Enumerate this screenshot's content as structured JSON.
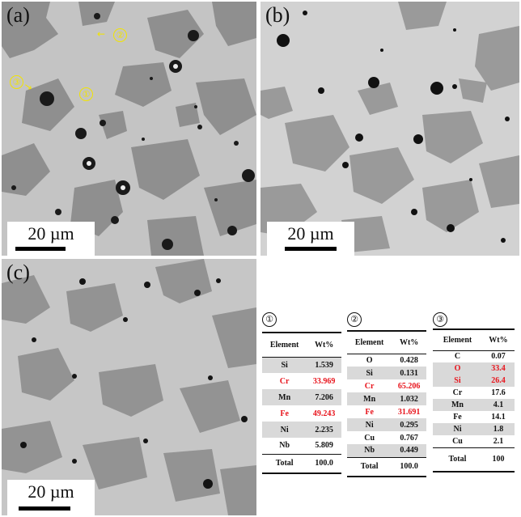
{
  "panels": [
    {
      "label": "(a)",
      "scale": "20 µm"
    },
    {
      "label": "(b)",
      "scale": "20 µm"
    },
    {
      "label": "(c)",
      "scale": "20 µm"
    }
  ],
  "annotations": {
    "point1": "①",
    "point2": "②",
    "point3": "③"
  },
  "tables": [
    {
      "title": "①",
      "header": [
        "Element",
        "Wt%"
      ],
      "rows": [
        {
          "el": "Si",
          "wt": "1.539",
          "red": false
        },
        {
          "el": "Cr",
          "wt": "33.969",
          "red": true
        },
        {
          "el": "Mn",
          "wt": "7.206",
          "red": false
        },
        {
          "el": "Fe",
          "wt": "49.243",
          "red": true
        },
        {
          "el": "Ni",
          "wt": "2.235",
          "red": false
        },
        {
          "el": "Nb",
          "wt": "5.809",
          "red": false
        }
      ],
      "total": [
        "Total",
        "100.0"
      ]
    },
    {
      "title": "②",
      "header": [
        "Element",
        "Wt%"
      ],
      "rows": [
        {
          "el": "O",
          "wt": "0.428",
          "red": false
        },
        {
          "el": "Si",
          "wt": "0.131",
          "red": false
        },
        {
          "el": "Cr",
          "wt": "65.206",
          "red": true
        },
        {
          "el": "Mn",
          "wt": "1.032",
          "red": false
        },
        {
          "el": "Fe",
          "wt": "31.691",
          "red": true
        },
        {
          "el": "Ni",
          "wt": "0.295",
          "red": false
        },
        {
          "el": "Cu",
          "wt": "0.767",
          "red": false
        },
        {
          "el": "Nb",
          "wt": "0.449",
          "red": false
        }
      ],
      "total": [
        "Total",
        "100.0"
      ]
    },
    {
      "title": "③",
      "header": [
        "Element",
        "Wt%"
      ],
      "rows": [
        {
          "el": "C",
          "wt": "0.07",
          "red": false
        },
        {
          "el": "O",
          "wt": "33.4",
          "red": true
        },
        {
          "el": "Si",
          "wt": "26.4",
          "red": true
        },
        {
          "el": "Cr",
          "wt": "17.6",
          "red": false
        },
        {
          "el": "Mn",
          "wt": "4.1",
          "red": false
        },
        {
          "el": "Fe",
          "wt": "14.1",
          "red": false
        },
        {
          "el": "Ni",
          "wt": "1.8",
          "red": false
        },
        {
          "el": "Cu",
          "wt": "2.1",
          "red": false
        }
      ],
      "total": [
        "Total",
        "100"
      ]
    }
  ]
}
